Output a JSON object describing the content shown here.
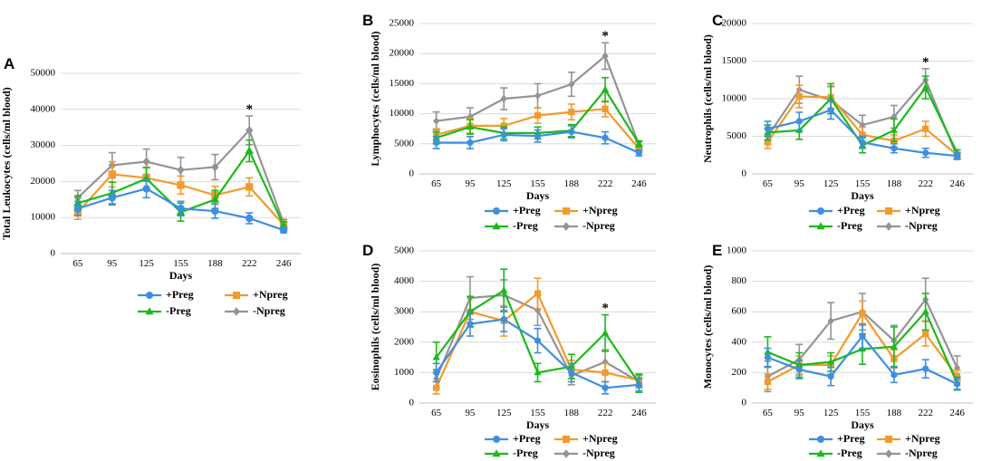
{
  "series_meta": [
    {
      "name": "+Preg",
      "color": "#3d8fe0",
      "marker": "circle"
    },
    {
      "name": "+Npreg",
      "color": "#f39a2c",
      "marker": "square"
    },
    {
      "name": "-Preg",
      "color": "#1aba1a",
      "marker": "triangle"
    },
    {
      "name": "-Npreg",
      "color": "#949494",
      "marker": "diamond"
    }
  ],
  "chart_data": [
    {
      "panel": "A",
      "type": "line",
      "xlabel": "Days",
      "ylabel": "Total Leukocytes (cells/ml blood)",
      "categories": [
        "65",
        "95",
        "125",
        "155",
        "188",
        "222",
        "246"
      ],
      "ylim": [
        0,
        50000
      ],
      "yticks": [
        0,
        10000,
        20000,
        30000,
        40000,
        50000
      ],
      "significance": [
        {
          "category": "222",
          "label": "*"
        }
      ],
      "series": [
        {
          "name": "+Preg",
          "values": [
            12500,
            15500,
            18000,
            12500,
            11800,
            9800,
            6500
          ],
          "errors": [
            2000,
            2000,
            2500,
            2000,
            2000,
            1500,
            700
          ]
        },
        {
          "name": "+Npreg",
          "values": [
            11500,
            22000,
            21000,
            19000,
            16200,
            18500,
            8000
          ],
          "errors": [
            2000,
            3500,
            3000,
            2500,
            2500,
            2500,
            1000
          ]
        },
        {
          "name": "-Preg",
          "values": [
            14000,
            16800,
            20800,
            11500,
            15000,
            28500,
            7800
          ],
          "errors": [
            2000,
            3000,
            3000,
            2500,
            2500,
            3000,
            1000
          ]
        },
        {
          "name": "-Npreg",
          "values": [
            15500,
            24500,
            25500,
            23200,
            24000,
            34200,
            8500
          ],
          "errors": [
            2000,
            3500,
            3500,
            3500,
            3500,
            4000,
            1000
          ]
        }
      ]
    },
    {
      "panel": "B",
      "type": "line",
      "xlabel": "Days",
      "ylabel": "Lymphocytes (cells/ml blood)",
      "categories": [
        "65",
        "95",
        "125",
        "155",
        "188",
        "222",
        "246"
      ],
      "ylim": [
        0,
        25000
      ],
      "yticks": [
        0,
        5000,
        10000,
        15000,
        20000,
        25000
      ],
      "significance": [
        {
          "category": "222",
          "label": "*"
        }
      ],
      "series": [
        {
          "name": "+Preg",
          "values": [
            5200,
            5200,
            6500,
            6300,
            7000,
            6000,
            3500
          ],
          "errors": [
            1000,
            1000,
            1000,
            1000,
            1000,
            1000,
            500
          ]
        },
        {
          "name": "+Npreg",
          "values": [
            6500,
            8000,
            8000,
            9700,
            10300,
            10800,
            4200
          ],
          "errors": [
            1000,
            1200,
            1200,
            1300,
            1300,
            1300,
            500
          ]
        },
        {
          "name": "-Preg",
          "values": [
            6000,
            7800,
            6800,
            6800,
            7200,
            14000,
            5000
          ],
          "errors": [
            1000,
            1200,
            1000,
            1000,
            1000,
            2000,
            500
          ]
        },
        {
          "name": "-Npreg",
          "values": [
            8800,
            9500,
            12500,
            13000,
            14900,
            19600,
            4800
          ],
          "errors": [
            1500,
            1500,
            1800,
            2000,
            2000,
            2200,
            500
          ]
        }
      ]
    },
    {
      "panel": "C",
      "type": "line",
      "xlabel": "Days",
      "ylabel": "Neutrophils (cells/ml blood)",
      "categories": [
        "65",
        "95",
        "125",
        "155",
        "188",
        "222",
        "246"
      ],
      "ylim": [
        0,
        20000
      ],
      "yticks": [
        0,
        5000,
        10000,
        15000,
        20000
      ],
      "significance": [
        {
          "category": "222",
          "label": "*"
        }
      ],
      "series": [
        {
          "name": "+Preg",
          "values": [
            6000,
            7000,
            8500,
            4200,
            3400,
            2800,
            2400
          ],
          "errors": [
            1000,
            1200,
            1200,
            800,
            600,
            600,
            400
          ]
        },
        {
          "name": "+Npreg",
          "values": [
            4200,
            10300,
            10200,
            5200,
            4400,
            6000,
            2500
          ],
          "errors": [
            800,
            1500,
            1500,
            1000,
            800,
            1000,
            400
          ]
        },
        {
          "name": "-Preg",
          "values": [
            5500,
            5800,
            10000,
            3800,
            5800,
            11500,
            2800
          ],
          "errors": [
            1000,
            1200,
            2000,
            1000,
            1500,
            1500,
            400
          ]
        },
        {
          "name": "-Npreg",
          "values": [
            5000,
            11200,
            9800,
            6500,
            7600,
            12500,
            2300
          ],
          "errors": [
            1000,
            1800,
            1800,
            1300,
            1500,
            1500,
            400
          ]
        }
      ]
    },
    {
      "panel": "D",
      "type": "line",
      "xlabel": "Days",
      "ylabel": "Eosinophils (cells/ml blood)",
      "categories": [
        "65",
        "95",
        "125",
        "155",
        "188",
        "222",
        "246"
      ],
      "ylim": [
        0,
        5000
      ],
      "yticks": [
        0,
        1000,
        2000,
        3000,
        4000,
        5000
      ],
      "significance": [
        {
          "category": "222",
          "label": "*"
        }
      ],
      "series": [
        {
          "name": "+Preg",
          "values": [
            1000,
            2600,
            2750,
            2050,
            1000,
            500,
            600
          ],
          "errors": [
            300,
            400,
            400,
            400,
            300,
            200,
            200
          ]
        },
        {
          "name": "+Npreg",
          "values": [
            500,
            3000,
            2700,
            3600,
            1100,
            1000,
            750
          ],
          "errors": [
            200,
            500,
            500,
            500,
            300,
            300,
            200
          ]
        },
        {
          "name": "-Preg",
          "values": [
            1500,
            3000,
            3700,
            1000,
            1200,
            2300,
            650
          ],
          "errors": [
            500,
            500,
            700,
            300,
            400,
            600,
            300
          ]
        },
        {
          "name": "-Npreg",
          "values": [
            800,
            3450,
            3550,
            3050,
            900,
            1350,
            700
          ],
          "errors": [
            300,
            700,
            500,
            500,
            300,
            400,
            200
          ]
        }
      ]
    },
    {
      "panel": "E",
      "type": "line",
      "xlabel": "Days",
      "ylabel": "Monocytes (cells/ml blood)",
      "categories": [
        "65",
        "95",
        "125",
        "155",
        "188",
        "222",
        "246"
      ],
      "ylim": [
        0,
        1000
      ],
      "yticks": [
        0,
        200,
        400,
        600,
        800,
        1000
      ],
      "significance": [],
      "series": [
        {
          "name": "+Preg",
          "values": [
            300,
            220,
            175,
            440,
            185,
            225,
            125
          ],
          "errors": [
            60,
            60,
            60,
            80,
            50,
            60,
            40
          ]
        },
        {
          "name": "+Npreg",
          "values": [
            140,
            250,
            250,
            590,
            290,
            455,
            175
          ],
          "errors": [
            50,
            60,
            60,
            80,
            60,
            80,
            40
          ]
        },
        {
          "name": "-Preg",
          "values": [
            335,
            250,
            270,
            355,
            370,
            600,
            130
          ],
          "errors": [
            100,
            80,
            60,
            100,
            130,
            120,
            40
          ]
        },
        {
          "name": "-Npreg",
          "values": [
            175,
            285,
            540,
            600,
            410,
            680,
            230
          ],
          "errors": [
            100,
            100,
            120,
            120,
            100,
            140,
            80
          ]
        }
      ]
    }
  ]
}
